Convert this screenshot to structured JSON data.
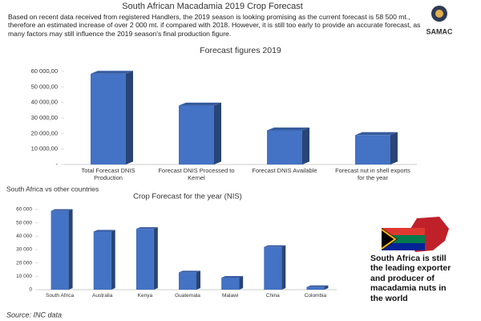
{
  "header": {
    "title": "South African  Macadamia  2019 Crop Forecast",
    "text": "Based on recent data received from registered Handlers, the 2019 season is looking promising as the current forecast is 58 500 mt., therefore an estimated increase of over 2 000 mt. if compared with 2018. However, it is still too early to provide an accurate forecast, as many factors may still influence the 2019 season's final production figure.",
    "logo": "SAMAC"
  },
  "chart_data": [
    {
      "type": "bar",
      "title": "Forecast figures 2019",
      "categories": [
        "Total Forecast DNIS Production",
        "Forecast DNIS Processed to Kernel",
        "Forecast DNIS Available",
        "Forecast nut in shell exports for the year"
      ],
      "values": [
        58500,
        38000,
        22000,
        19000
      ],
      "color": "#4472c4",
      "ylim": [
        0,
        60000
      ],
      "yticks": [
        {
          "value": 0,
          "label": "-"
        },
        {
          "value": 10000,
          "label": "10 000,00"
        },
        {
          "value": 20000,
          "label": "20 000,00"
        },
        {
          "value": 30000,
          "label": "30 000,00"
        },
        {
          "value": 40000,
          "label": "40 000,00"
        },
        {
          "value": 50000,
          "label": "50 000,00"
        },
        {
          "value": 60000,
          "label": "60 000,00"
        }
      ],
      "grid": false
    },
    {
      "type": "bar",
      "title": "Crop Forecast for the year (NIS)",
      "categories": [
        "South Africa",
        "Australia",
        "Kenya",
        "Guatemala",
        "Malawi",
        "China",
        "Colombia"
      ],
      "values": [
        59000,
        43500,
        45500,
        13000,
        9000,
        32000,
        2000
      ],
      "color": "#4472c4",
      "ylim": [
        0,
        60000
      ],
      "yticks": [
        0,
        {
          "value": 10000,
          "label": "10 000"
        },
        {
          "value": 20000,
          "label": "20 000"
        },
        {
          "value": 30000,
          "label": "30 000"
        },
        {
          "value": 40000,
          "label": "40 000"
        },
        {
          "value": 50000,
          "label": "50 000"
        },
        {
          "value": 60000,
          "label": "60 000"
        }
      ],
      "grid": false
    }
  ],
  "section": "South Africa vs other countries",
  "sidebar": "South Africa is still the leading exporter and producer of macadamia nuts in the world",
  "source": "Source:  INC data"
}
